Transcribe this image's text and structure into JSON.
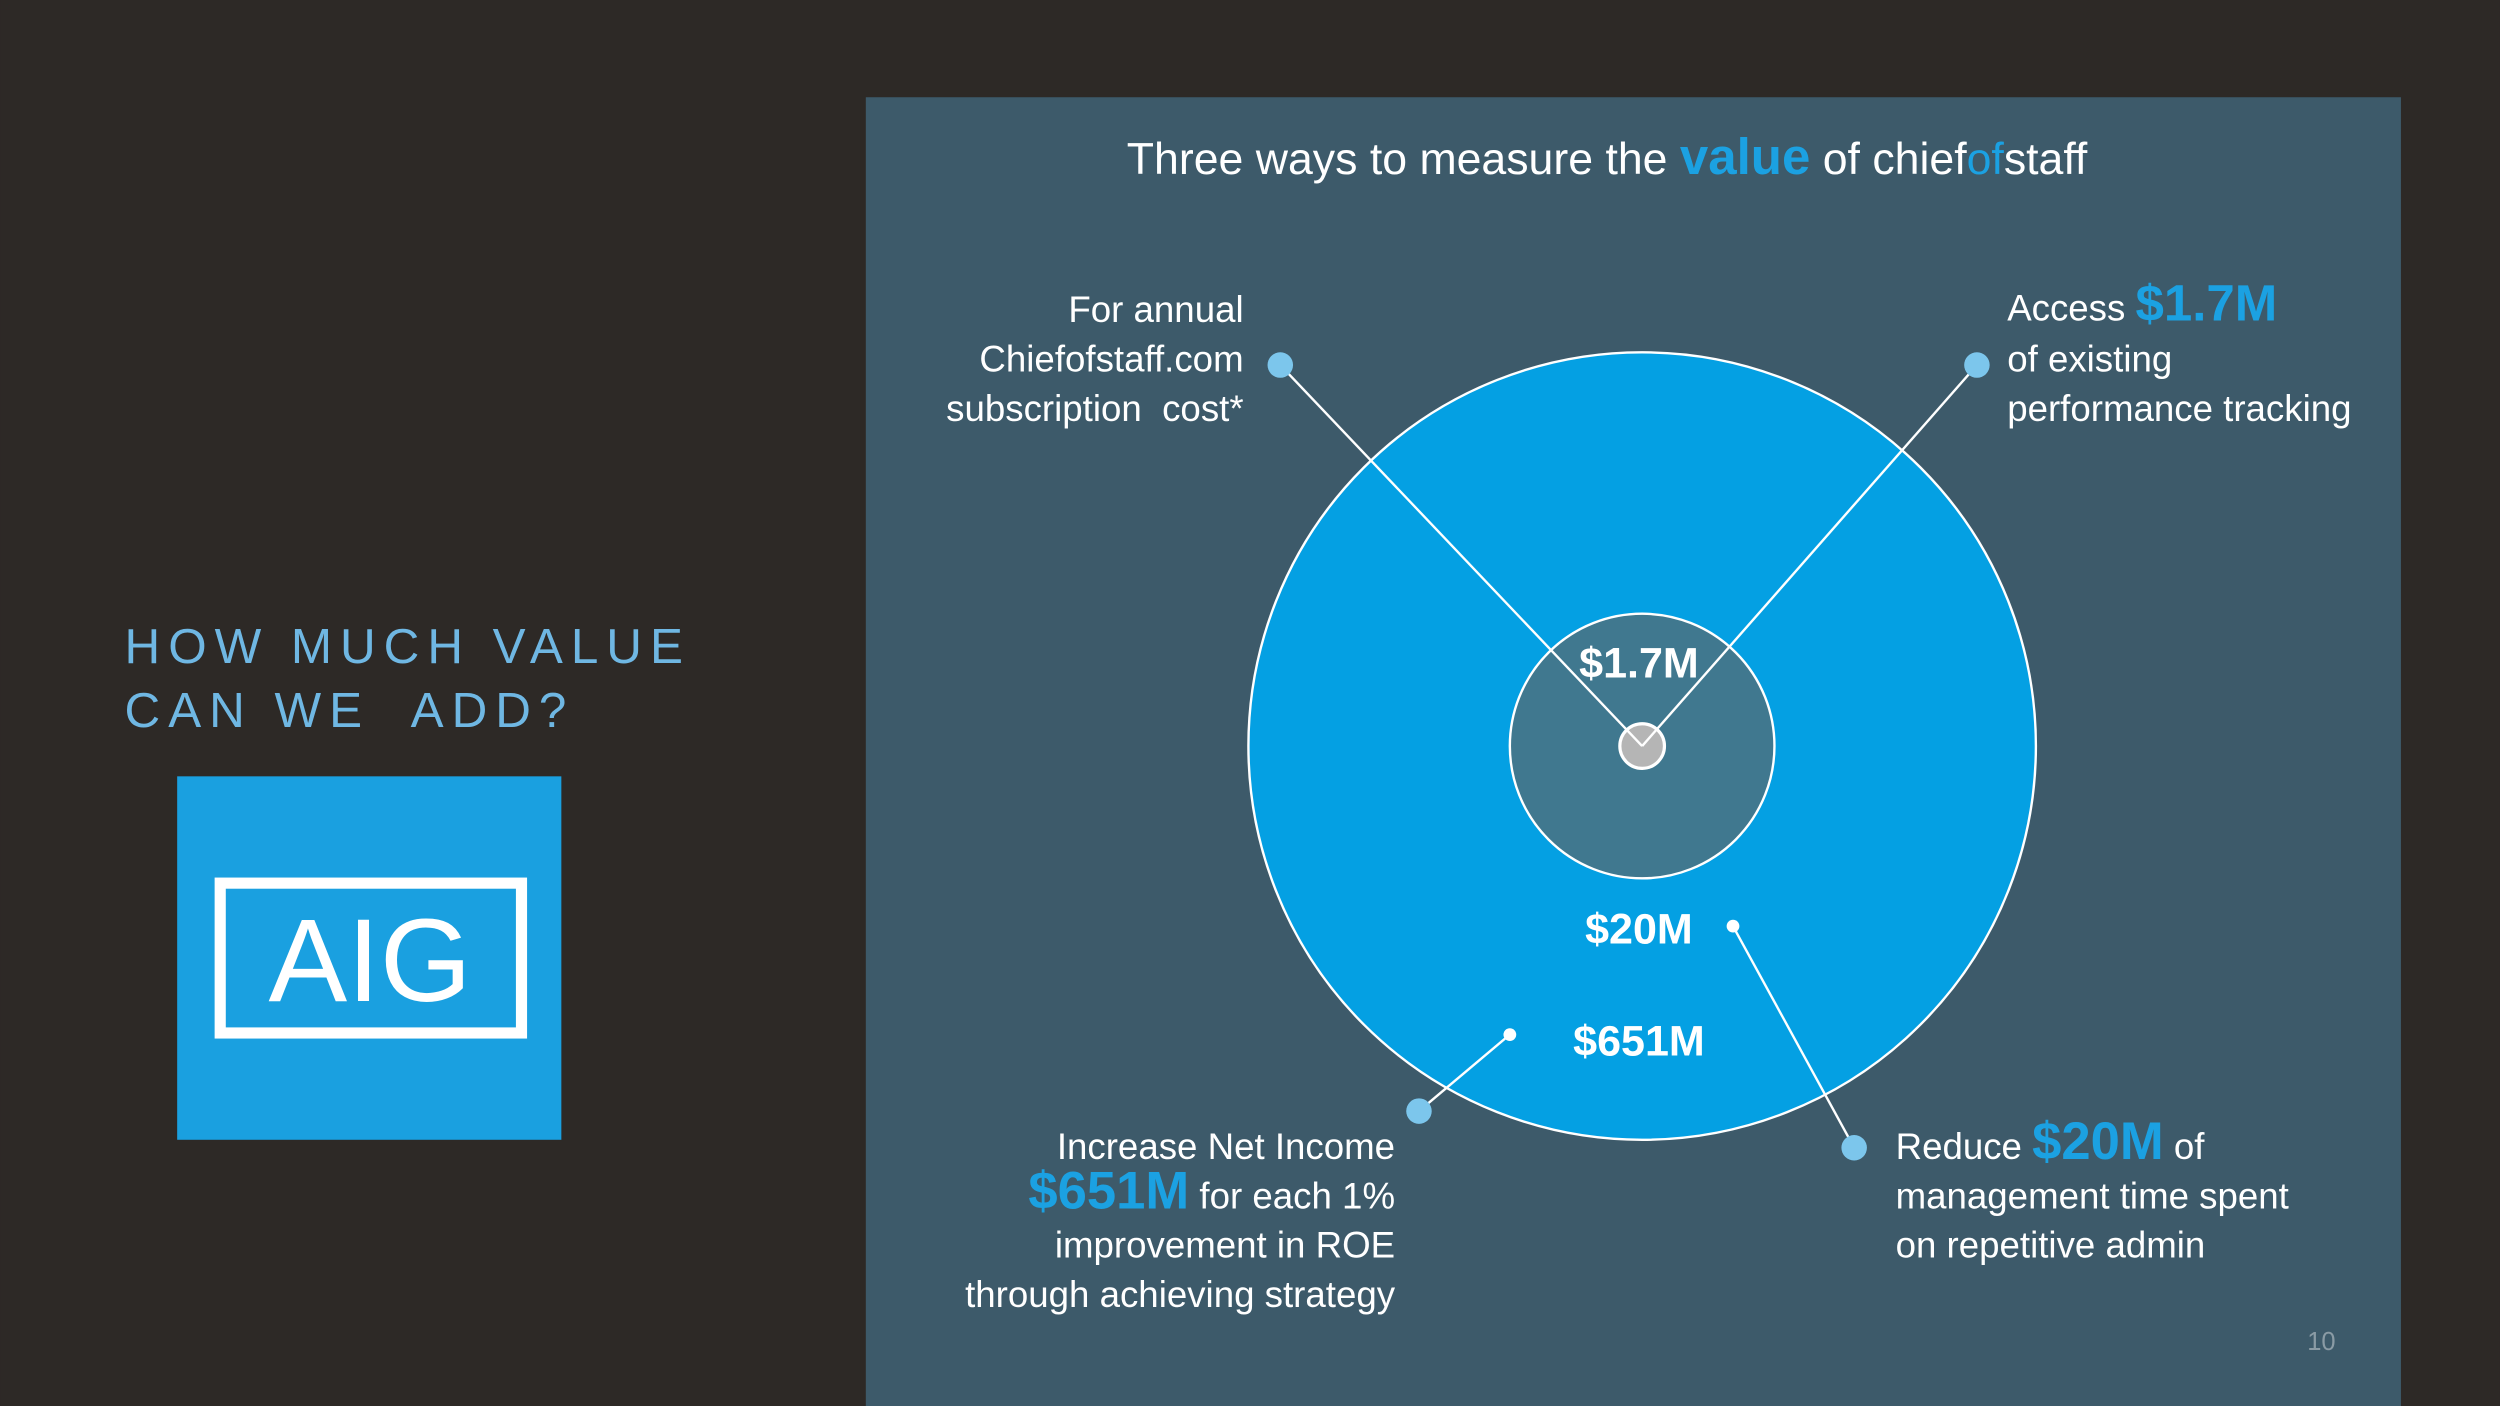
{
  "heading": [
    "HOW MUCH VALUE",
    "CAN WE  ADD?"
  ],
  "logo": "AIG",
  "title": [
    "Three ways to measure the ",
    "value",
    " of chief",
    "of",
    "staff"
  ],
  "callouts": {
    "top_left": [
      "For annual",
      "Chiefofstaff.com",
      "subscription  cost*"
    ],
    "top_right": [
      [
        "Access ",
        "$1.7M"
      ],
      "of existing",
      "performance tracking"
    ],
    "bottom_left": [
      "Increase Net Income",
      [
        "$651M",
        " for each 1%"
      ],
      "improvement in ROE",
      "through achieving strategy"
    ],
    "bottom_right": [
      [
        "Reduce ",
        "$20M",
        " of"
      ],
      "management time spent",
      "on repetitive admin"
    ]
  },
  "circle_labels": [
    "$1.7M",
    "$20M",
    "$651M"
  ],
  "page_number": "10"
}
